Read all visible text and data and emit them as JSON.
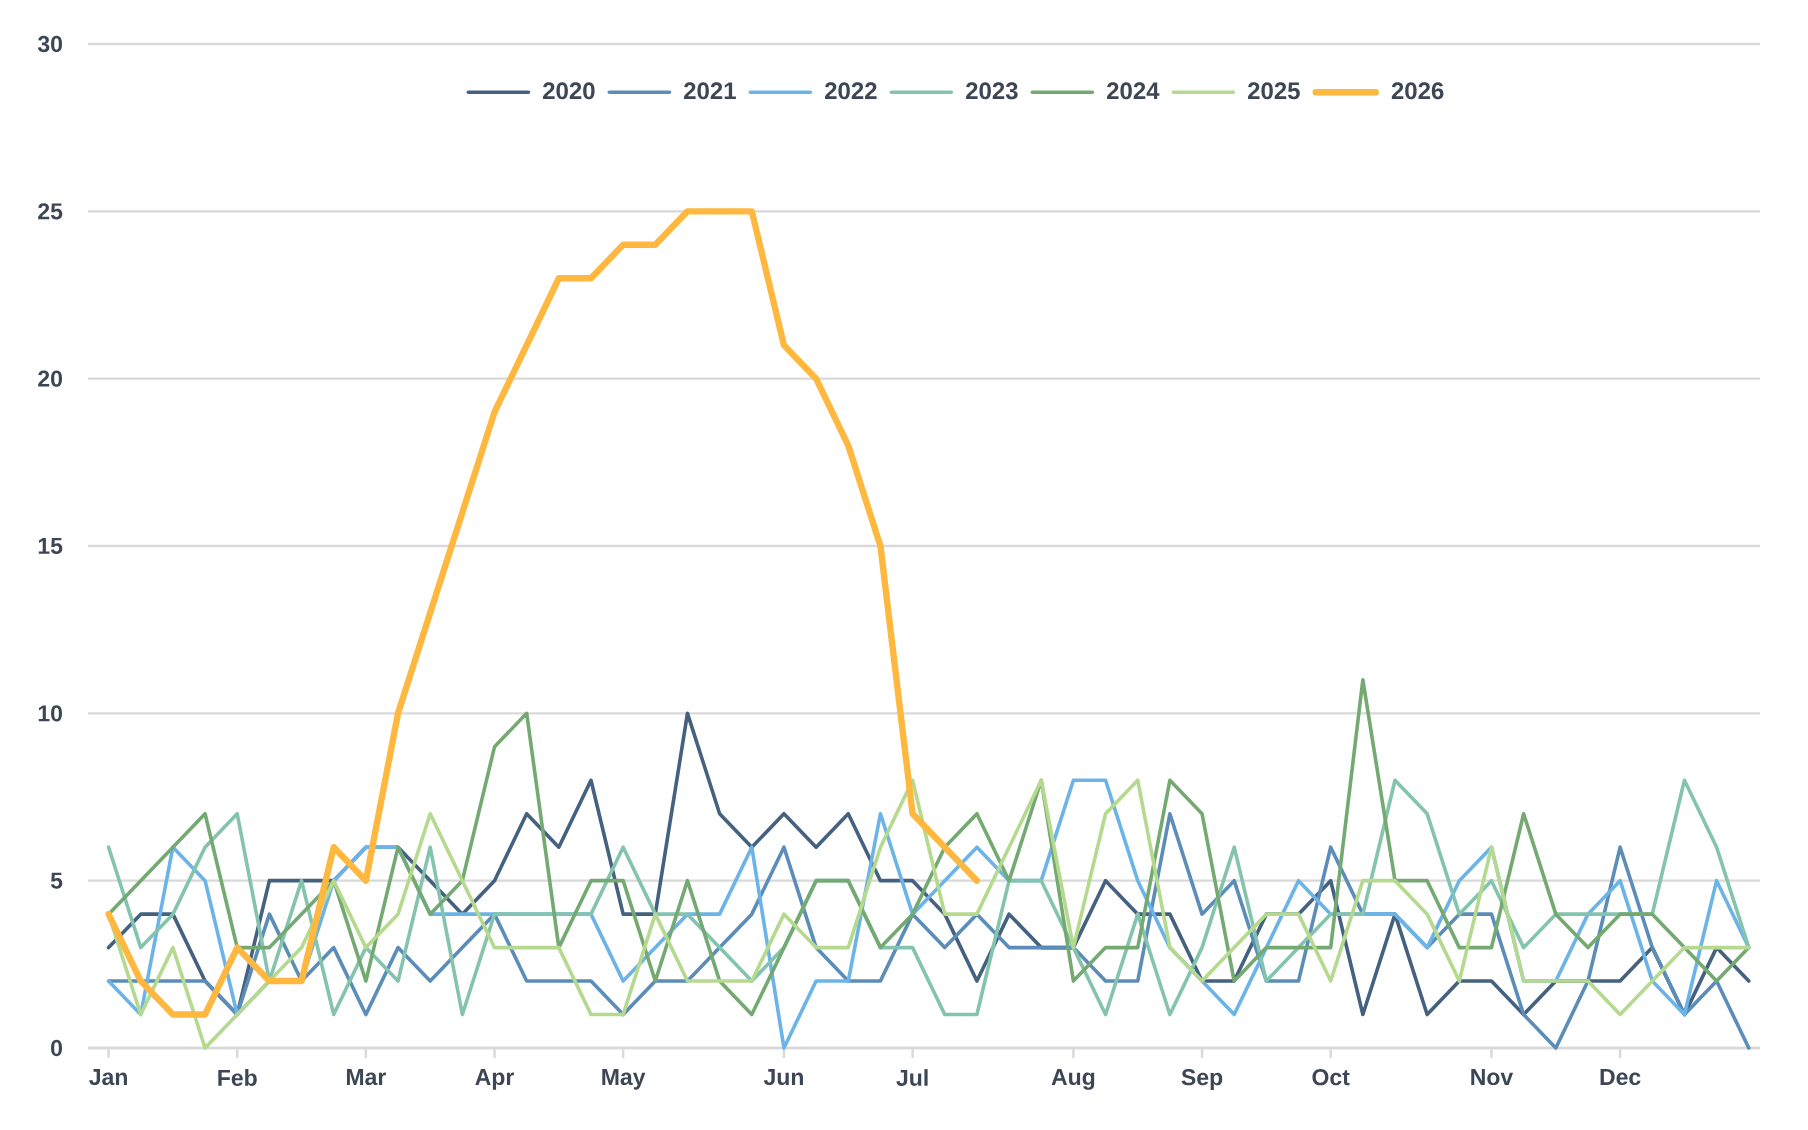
{
  "chart_data": {
    "type": "line",
    "categories": [
      "Jan",
      null,
      null,
      null,
      "Feb",
      null,
      null,
      null,
      "Mar",
      null,
      null,
      null,
      "Apr",
      null,
      null,
      null,
      "May",
      null,
      null,
      null,
      null,
      "Jun",
      null,
      null,
      null,
      "Jul",
      null,
      null,
      null,
      null,
      "Aug",
      null,
      null,
      null,
      "Sep",
      null,
      null,
      null,
      "Oct",
      null,
      null,
      null,
      null,
      "Nov",
      null,
      null,
      null,
      "Dec",
      null,
      null,
      null,
      null
    ],
    "ylim": [
      0,
      30
    ],
    "yticks": [
      0,
      5,
      10,
      15,
      20,
      25,
      30
    ],
    "grid": "y",
    "legend": "top",
    "marker": "none",
    "line_style": "solid",
    "series": [
      {
        "name": "2020",
        "color": "#44617f",
        "values": [
          3,
          4,
          4,
          2,
          1,
          5,
          5,
          5,
          6,
          6,
          5,
          4,
          5,
          7,
          6,
          8,
          4,
          4,
          10,
          7,
          6,
          7,
          6,
          7,
          5,
          5,
          4,
          2,
          4,
          3,
          3,
          5,
          4,
          4,
          2,
          2,
          4,
          4,
          5,
          1,
          4,
          1,
          2,
          2,
          1,
          2,
          2,
          2,
          3,
          1,
          3,
          2
        ]
      },
      {
        "name": "2021",
        "color": "#5b8db8",
        "values": [
          2,
          2,
          2,
          2,
          1,
          4,
          2,
          3,
          1,
          3,
          2,
          3,
          4,
          2,
          2,
          2,
          1,
          2,
          2,
          3,
          4,
          6,
          3,
          2,
          2,
          4,
          3,
          4,
          3,
          3,
          3,
          2,
          2,
          7,
          4,
          5,
          2,
          2,
          6,
          4,
          4,
          3,
          4,
          4,
          1,
          0,
          2,
          6,
          3,
          1,
          2,
          0
        ]
      },
      {
        "name": "2022",
        "color": "#6cb4e8",
        "values": [
          2,
          1,
          6,
          5,
          1,
          2,
          2,
          5,
          6,
          6,
          4,
          4,
          4,
          4,
          4,
          4,
          2,
          3,
          4,
          4,
          6,
          0,
          2,
          2,
          7,
          4,
          5,
          6,
          5,
          5,
          8,
          8,
          5,
          3,
          2,
          1,
          3,
          5,
          4,
          4,
          4,
          3,
          5,
          6,
          2,
          2,
          4,
          5,
          2,
          1,
          5,
          3
        ]
      },
      {
        "name": "2023",
        "color": "#84c4ad",
        "values": [
          6,
          3,
          4,
          6,
          7,
          2,
          5,
          1,
          3,
          2,
          6,
          1,
          4,
          4,
          4,
          4,
          6,
          4,
          4,
          3,
          2,
          3,
          5,
          5,
          3,
          3,
          1,
          1,
          5,
          5,
          3,
          1,
          4,
          1,
          3,
          6,
          2,
          3,
          4,
          4,
          8,
          7,
          4,
          5,
          3,
          4,
          4,
          4,
          4,
          8,
          6,
          3
        ]
      },
      {
        "name": "2024",
        "color": "#74aa72",
        "values": [
          4,
          5,
          6,
          7,
          3,
          3,
          4,
          5,
          2,
          6,
          4,
          5,
          9,
          10,
          3,
          5,
          5,
          2,
          5,
          2,
          1,
          3,
          5,
          5,
          3,
          4,
          6,
          7,
          5,
          8,
          2,
          3,
          3,
          8,
          7,
          2,
          3,
          3,
          3,
          11,
          5,
          5,
          3,
          3,
          7,
          4,
          3,
          4,
          4,
          3,
          2,
          3
        ]
      },
      {
        "name": "2025",
        "color": "#b5d98e",
        "values": [
          4,
          1,
          3,
          0,
          1,
          2,
          3,
          5,
          3,
          4,
          7,
          5,
          3,
          3,
          3,
          1,
          1,
          4,
          2,
          2,
          2,
          4,
          3,
          3,
          6,
          8,
          4,
          4,
          6,
          8,
          3,
          7,
          8,
          3,
          2,
          3,
          4,
          4,
          2,
          5,
          5,
          4,
          2,
          6,
          2,
          2,
          2,
          1,
          2,
          3,
          3,
          3
        ]
      },
      {
        "name": "2026",
        "color": "#ffb83f",
        "values": [
          4,
          2,
          1,
          1,
          3,
          2,
          2,
          6,
          5,
          10,
          13,
          16,
          19,
          21,
          23,
          23,
          24,
          24,
          25,
          25,
          25,
          21,
          20,
          18,
          15,
          7,
          6,
          5,
          null,
          null,
          null,
          null,
          null,
          null,
          null,
          null,
          null,
          null,
          null,
          null,
          null,
          null,
          null,
          null,
          null,
          null,
          null,
          null,
          null,
          null,
          null,
          null
        ]
      }
    ]
  }
}
